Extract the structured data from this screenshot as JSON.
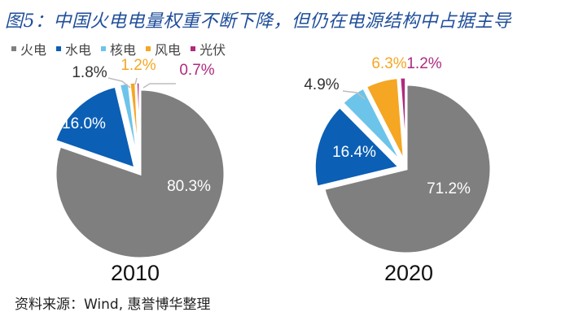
{
  "title": "图5：中国火电电量权重不断下降，但仍在电源结构中占据主导",
  "source": "资料来源：Wind, 惠誉博华整理",
  "legend": [
    {
      "label": "火电",
      "color": "#7f7f7f"
    },
    {
      "label": "水电",
      "color": "#0b5fb5"
    },
    {
      "label": "核电",
      "color": "#6cc4ea"
    },
    {
      "label": "风电",
      "color": "#f5a623"
    },
    {
      "label": "光伏",
      "color": "#b02a7e"
    }
  ],
  "chart_data": [
    {
      "type": "pie",
      "title": "2010",
      "categories": [
        "火电",
        "水电",
        "核电",
        "风电",
        "光伏"
      ],
      "values": [
        80.3,
        16.0,
        1.8,
        1.2,
        0.7
      ],
      "labels": [
        "80.3%",
        "16.0%",
        "1.8%",
        "1.2%",
        "0.7%"
      ],
      "exploded": [
        "水电",
        "核电",
        "风电",
        "光伏"
      ]
    },
    {
      "type": "pie",
      "title": "2020",
      "categories": [
        "火电",
        "水电",
        "核电",
        "风电",
        "光伏"
      ],
      "values": [
        71.2,
        16.4,
        4.9,
        6.3,
        1.2
      ],
      "labels": [
        "71.2%",
        "16.4%",
        "4.9%",
        "6.3%",
        "1.2%"
      ],
      "exploded": [
        "水电",
        "核电",
        "风电",
        "光伏"
      ]
    }
  ]
}
